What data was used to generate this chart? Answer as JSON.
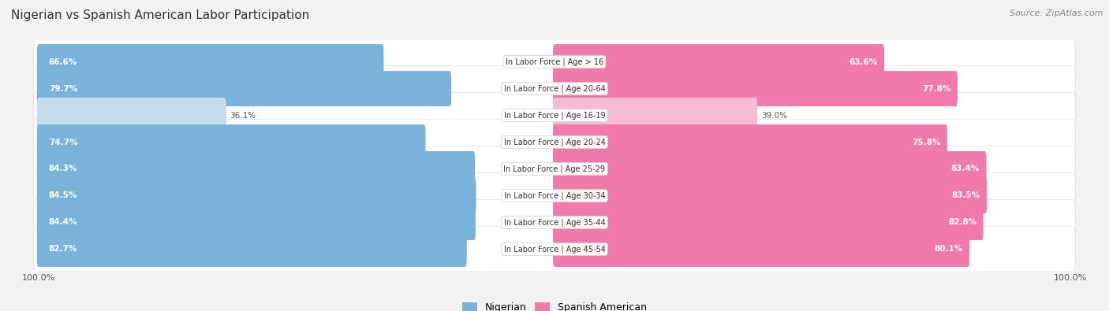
{
  "title": "Nigerian vs Spanish American Labor Participation",
  "source": "Source: ZipAtlas.com",
  "categories": [
    "In Labor Force | Age > 16",
    "In Labor Force | Age 20-64",
    "In Labor Force | Age 16-19",
    "In Labor Force | Age 20-24",
    "In Labor Force | Age 25-29",
    "In Labor Force | Age 30-34",
    "In Labor Force | Age 35-44",
    "In Labor Force | Age 45-54"
  ],
  "nigerian": [
    66.6,
    79.7,
    36.1,
    74.7,
    84.3,
    84.5,
    84.4,
    82.7
  ],
  "spanish": [
    63.6,
    77.8,
    39.0,
    75.8,
    83.4,
    83.5,
    82.8,
    80.1
  ],
  "nigerian_color": "#7ab3d9",
  "nigerian_light_color": "#c5dced",
  "spanish_color": "#f07aaa",
  "spanish_light_color": "#f5bcd3",
  "bg_color": "#f2f2f2",
  "row_light_color": "#f8f8f8",
  "row_dark_color": "#eeeeee",
  "max_val": 100.0,
  "figsize": [
    14.06,
    3.95
  ],
  "dpi": 100
}
